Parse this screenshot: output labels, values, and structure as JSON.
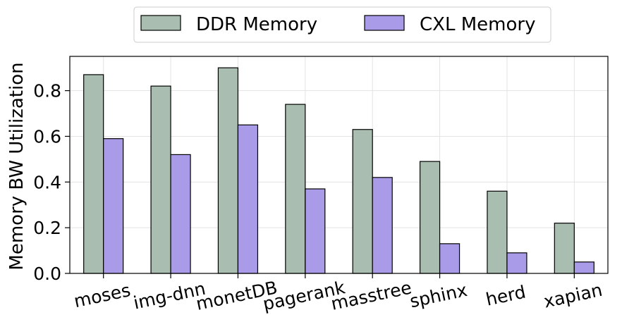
{
  "chart_data": {
    "type": "bar",
    "categories": [
      "moses",
      "img-dnn",
      "monetDB",
      "pagerank",
      "masstree",
      "sphinx",
      "herd",
      "xapian"
    ],
    "series": [
      {
        "name": "DDR Memory",
        "values": [
          0.87,
          0.82,
          0.9,
          0.74,
          0.63,
          0.49,
          0.36,
          0.22
        ],
        "color": "#a9bdb0"
      },
      {
        "name": "CXL Memory",
        "values": [
          0.59,
          0.52,
          0.65,
          0.37,
          0.42,
          0.13,
          0.09,
          0.05
        ],
        "color": "#a99be8"
      }
    ],
    "xlabel": "",
    "ylabel": "Memory BW Utilization",
    "ylim": [
      0,
      0.95
    ],
    "yticks": [
      0.0,
      0.2,
      0.4,
      0.6,
      0.8
    ],
    "ytick_labels": [
      "0.0",
      "0.2",
      "0.4",
      "0.6",
      "0.8"
    ],
    "grid": true,
    "legend_position": "top-center",
    "bar_edge_color": "#000000"
  }
}
